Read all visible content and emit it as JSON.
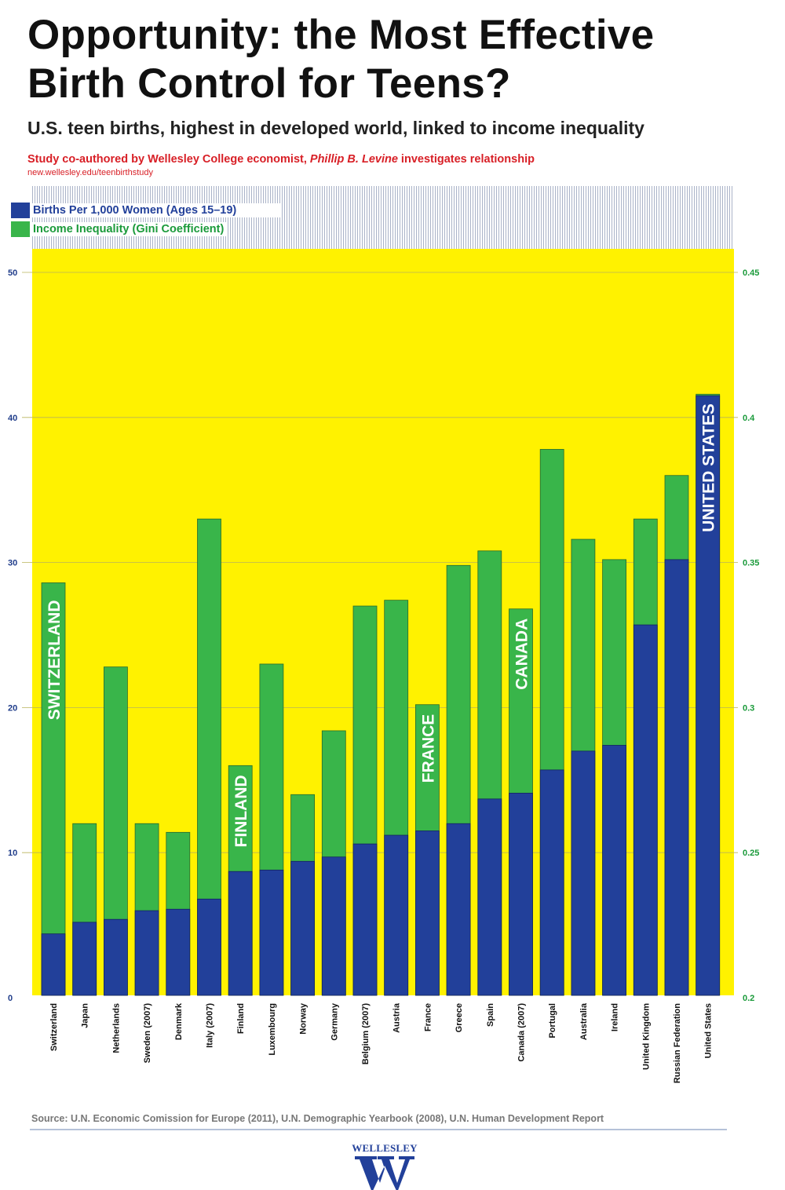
{
  "header": {
    "title_line1": "Opportunity: the Most Effective",
    "title_line2": "Birth Control for Teens?",
    "subtitle": "U.S. teen births, highest in developed world, linked to income inequality",
    "study_prefix": "Study co-authored by Wellesley College economist, ",
    "study_name": "Phillip B. Levine",
    "study_suffix": " investigates relationship",
    "url": "new.wellesley.edu/teenbirthstudy"
  },
  "footer": {
    "source": "Source: U.N. Economic Comission for Europe (2011), U.N. Demographic Yearbook (2008), U.N. Human Development Report",
    "logo_text": "WELLESLEY",
    "logo_letter": "W"
  },
  "colors": {
    "births": "#22409a",
    "gini": "#39b54a",
    "background": "#fff200",
    "left_axis": "#1f3c8a",
    "right_axis": "#1a9a3a"
  },
  "chart_data": {
    "type": "bar",
    "title": "Opportunity: the Most Effective Birth Control for Teens?",
    "categories": [
      "Switzerland",
      "Japan",
      "Netherlands",
      "Sweden (2007)",
      "Denmark",
      "Italy (2007)",
      "Finland",
      "Luxembourg",
      "Norway",
      "Germany",
      "Belgium (2007)",
      "Austria",
      "France",
      "Greece",
      "Spain",
      "Canada (2007)",
      "Portugal",
      "Australia",
      "Ireland",
      "United Kingdom",
      "Russian Federation",
      "United States"
    ],
    "series": [
      {
        "name": "Births Per 1,000 Women (Ages 15–19)",
        "axis": "left",
        "values": [
          4.4,
          5.2,
          5.4,
          6.0,
          6.1,
          6.8,
          8.7,
          8.8,
          9.4,
          9.7,
          10.6,
          11.2,
          11.5,
          12.0,
          13.7,
          14.1,
          15.7,
          17.0,
          17.4,
          25.7,
          30.2,
          41.5
        ]
      },
      {
        "name": "Income Inequality (Gini Coefficient)",
        "axis": "right",
        "values": [
          0.343,
          0.26,
          0.314,
          0.26,
          0.257,
          0.365,
          0.28,
          0.315,
          0.27,
          0.292,
          0.335,
          0.337,
          0.301,
          0.349,
          0.354,
          0.334,
          0.389,
          0.358,
          0.351,
          0.365,
          0.38,
          0.408
        ]
      }
    ],
    "left_axis": {
      "ylim": [
        0,
        50
      ],
      "ticks": [
        "0",
        "10",
        "20",
        "30",
        "40",
        "50"
      ]
    },
    "right_axis": {
      "ylim": [
        0.2,
        0.45
      ],
      "ticks": [
        "0.2",
        "0.25",
        "0.3",
        "0.35",
        "0.4",
        "0.45"
      ]
    },
    "grid": true,
    "legend": "top-left",
    "annotations": [
      {
        "category": "Switzerland",
        "text": "SWITZERLAND"
      },
      {
        "category": "Finland",
        "text": "FINLAND"
      },
      {
        "category": "France",
        "text": "FRANCE"
      },
      {
        "category": "Canada (2007)",
        "text": "CANADA"
      },
      {
        "category": "United States",
        "text": "UNITED STATES"
      }
    ]
  }
}
